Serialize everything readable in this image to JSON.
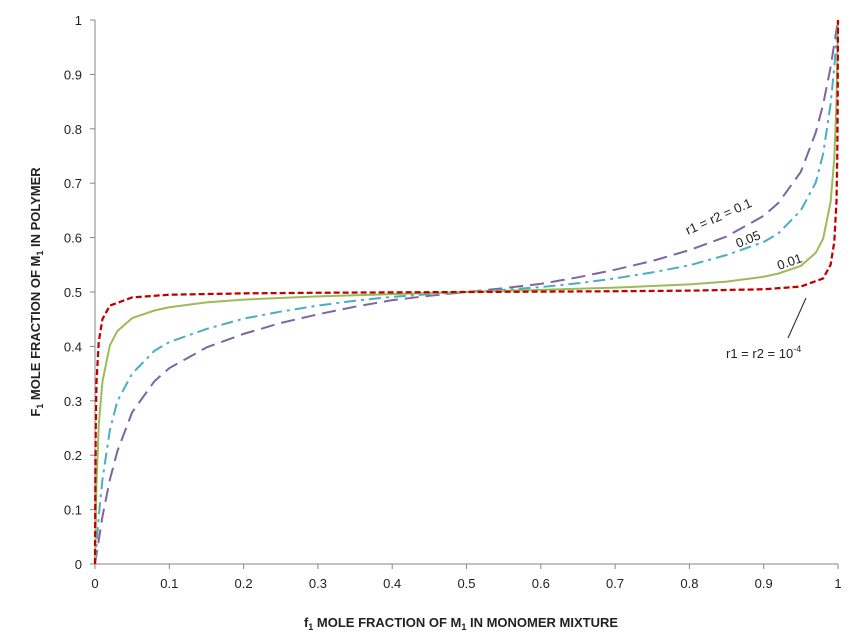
{
  "chart_data": {
    "type": "line",
    "title": "",
    "xlabel": {
      "prefix": "f",
      "prefix_sub": "1",
      "middle": "  MOLE FRACTION OF M",
      "middle_sub": "1",
      "suffix": " IN MONOMER MIXTURE"
    },
    "ylabel": {
      "prefix": "F",
      "prefix_sub": "1",
      "middle": "  MOLE FRACTION OF M",
      "middle_sub": "1",
      "suffix": " IN POLYMER"
    },
    "xlim": [
      0,
      1
    ],
    "ylim": [
      0,
      1
    ],
    "xticks": [
      "0",
      "0.1",
      "0.2",
      "0.3",
      "0.4",
      "0.5",
      "0.6",
      "0.7",
      "0.8",
      "0.9",
      "1"
    ],
    "yticks": [
      "0",
      "0.1",
      "0.2",
      "0.3",
      "0.4",
      "0.5",
      "0.6",
      "0.7",
      "0.8",
      "0.9",
      "1"
    ],
    "grid": false,
    "legend": "none",
    "series": [
      {
        "r": 0.1,
        "color": "#8064a2",
        "dash": "long-dash",
        "x": [
          0,
          0.01,
          0.02,
          0.03,
          0.05,
          0.08,
          0.1,
          0.15,
          0.2,
          0.25,
          0.3,
          0.35,
          0.4,
          0.45,
          0.5,
          0.55,
          0.6,
          0.65,
          0.7,
          0.75,
          0.8,
          0.85,
          0.9,
          0.92,
          0.95,
          0.97,
          0.98,
          0.99,
          1
        ],
        "y": [
          0,
          0.087,
          0.155,
          0.207,
          0.279,
          0.336,
          0.36,
          0.398,
          0.423,
          0.443,
          0.459,
          0.473,
          0.485,
          0.493,
          0.5,
          0.507,
          0.515,
          0.527,
          0.541,
          0.557,
          0.577,
          0.602,
          0.64,
          0.664,
          0.721,
          0.793,
          0.845,
          0.913,
          1
        ]
      },
      {
        "r": 0.05,
        "color": "#4bacc6",
        "dash": "dash-dot",
        "x": [
          0,
          0.005,
          0.01,
          0.02,
          0.03,
          0.05,
          0.08,
          0.1,
          0.15,
          0.2,
          0.25,
          0.3,
          0.35,
          0.4,
          0.45,
          0.5,
          0.55,
          0.6,
          0.65,
          0.7,
          0.75,
          0.8,
          0.85,
          0.9,
          0.92,
          0.95,
          0.97,
          0.98,
          0.99,
          0.995,
          1
        ],
        "y": [
          0,
          0.087,
          0.155,
          0.246,
          0.299,
          0.35,
          0.392,
          0.408,
          0.432,
          0.451,
          0.464,
          0.475,
          0.484,
          0.491,
          0.496,
          0.5,
          0.504,
          0.509,
          0.516,
          0.525,
          0.536,
          0.549,
          0.568,
          0.592,
          0.608,
          0.65,
          0.701,
          0.754,
          0.845,
          0.913,
          1
        ]
      },
      {
        "r": 0.01,
        "color": "#9bbb59",
        "dash": "solid",
        "x": [
          0,
          0.002,
          0.005,
          0.01,
          0.02,
          0.03,
          0.05,
          0.08,
          0.1,
          0.15,
          0.2,
          0.3,
          0.4,
          0.5,
          0.6,
          0.7,
          0.8,
          0.85,
          0.9,
          0.92,
          0.95,
          0.97,
          0.98,
          0.99,
          0.995,
          0.998,
          1
        ],
        "y": [
          0,
          0.149,
          0.255,
          0.335,
          0.402,
          0.428,
          0.452,
          0.466,
          0.472,
          0.481,
          0.486,
          0.492,
          0.496,
          0.5,
          0.504,
          0.508,
          0.514,
          0.519,
          0.528,
          0.534,
          0.548,
          0.572,
          0.598,
          0.665,
          0.745,
          0.851,
          1
        ]
      },
      {
        "r": 0.0001,
        "color": "#c00000",
        "dash": "short-dash",
        "x": [
          0,
          0.0005,
          0.001,
          0.002,
          0.005,
          0.01,
          0.02,
          0.05,
          0.1,
          0.2,
          0.3,
          0.4,
          0.5,
          0.6,
          0.7,
          0.8,
          0.9,
          0.95,
          0.98,
          0.99,
          0.995,
          0.998,
          0.999,
          0.9995,
          1
        ],
        "y": [
          0,
          0.167,
          0.25,
          0.333,
          0.408,
          0.45,
          0.475,
          0.49,
          0.495,
          0.4975,
          0.4986,
          0.4993,
          0.5,
          0.5007,
          0.5014,
          0.5025,
          0.505,
          0.51,
          0.525,
          0.55,
          0.592,
          0.667,
          0.75,
          0.833,
          1
        ]
      }
    ],
    "annotations": {
      "r01": "r1 = r2 = 0.1",
      "r005": "0.05",
      "r001": "0.01",
      "r1e4_prefix": "r1 = r2 = 10",
      "r1e4_exp": "-4"
    }
  }
}
